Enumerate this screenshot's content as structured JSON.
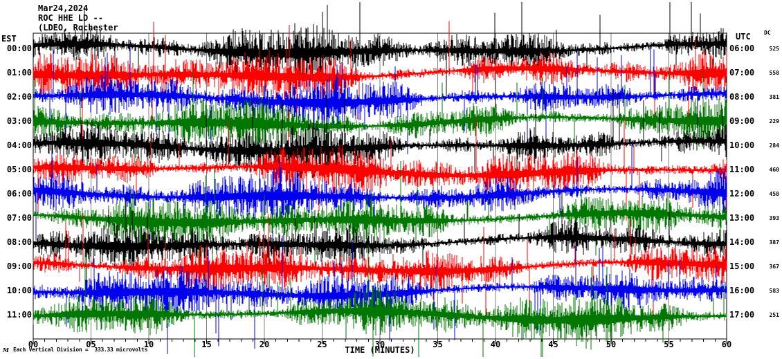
{
  "chart_data": {
    "type": "line",
    "subtype": "seismogram-helicorder",
    "title_lines": [
      "Mar24,2024",
      "ROC HHE LD --",
      "(LDEO, Rochester"
    ],
    "left_time_zone": "EST",
    "right_time_zone": "UTC",
    "dc_column_header": "DC",
    "xlabel": "TIME (MINUTES)",
    "x_range": [
      0,
      60
    ],
    "x_tick_interval_minutes": 5,
    "x_minor_tick_interval_minutes": 1,
    "x_tick_labels": [
      "00",
      "05",
      "10",
      "15",
      "20",
      "25",
      "30",
      "35",
      "40",
      "45",
      "50",
      "55",
      "60"
    ],
    "grid": "vertical gray lines every 5 minutes",
    "legend_position": "none",
    "scale_note": "Each Vertical Division =  333.33 microvolts",
    "vertical_division_microvolts": 333.33,
    "logo_mark": "M",
    "waveform_note": "continuous high-frequency noise traces, one row per hour; rendered from seeded pseudo-random parameters below",
    "palette": {
      "black": "#000000",
      "red": "#ff0000",
      "blue": "#0000ee",
      "green": "#007700",
      "grid": "#808080",
      "frame": "#000000",
      "background": "#ffffff"
    },
    "rows": [
      {
        "est_label": "00:00",
        "utc_label": "06:00",
        "dc_value": "525",
        "color_name": "black",
        "color": "#000000",
        "seed": 101,
        "base_amplitude": 22
      },
      {
        "est_label": "01:00",
        "utc_label": "07:00",
        "dc_value": "558",
        "color_name": "red",
        "color": "#ff0000",
        "seed": 202,
        "base_amplitude": 21
      },
      {
        "est_label": "02:00",
        "utc_label": "08:00",
        "dc_value": "381",
        "color_name": "blue",
        "color": "#0000ee",
        "seed": 303,
        "base_amplitude": 20
      },
      {
        "est_label": "03:00",
        "utc_label": "09:00",
        "dc_value": "229",
        "color_name": "green",
        "color": "#007700",
        "seed": 404,
        "base_amplitude": 20
      },
      {
        "est_label": "04:00",
        "utc_label": "10:00",
        "dc_value": "284",
        "color_name": "black",
        "color": "#000000",
        "seed": 505,
        "base_amplitude": 21
      },
      {
        "est_label": "05:00",
        "utc_label": "11:00",
        "dc_value": "460",
        "color_name": "red",
        "color": "#ff0000",
        "seed": 606,
        "base_amplitude": 21
      },
      {
        "est_label": "06:00",
        "utc_label": "12:00",
        "dc_value": "458",
        "color_name": "blue",
        "color": "#0000ee",
        "seed": 707,
        "base_amplitude": 20
      },
      {
        "est_label": "07:00",
        "utc_label": "13:00",
        "dc_value": "393",
        "color_name": "green",
        "color": "#007700",
        "seed": 808,
        "base_amplitude": 21
      },
      {
        "est_label": "08:00",
        "utc_label": "14:00",
        "dc_value": "387",
        "color_name": "black",
        "color": "#000000",
        "seed": 909,
        "base_amplitude": 18
      },
      {
        "est_label": "09:00",
        "utc_label": "15:00",
        "dc_value": "367",
        "color_name": "red",
        "color": "#ff0000",
        "seed": 1010,
        "base_amplitude": 20
      },
      {
        "est_label": "10:00",
        "utc_label": "16:00",
        "dc_value": "583",
        "color_name": "blue",
        "color": "#0000ee",
        "seed": 1111,
        "base_amplitude": 20
      },
      {
        "est_label": "11:00",
        "utc_label": "17:00",
        "dc_value": "251",
        "color_name": "green",
        "color": "#007700",
        "seed": 1212,
        "base_amplitude": 22
      }
    ]
  }
}
